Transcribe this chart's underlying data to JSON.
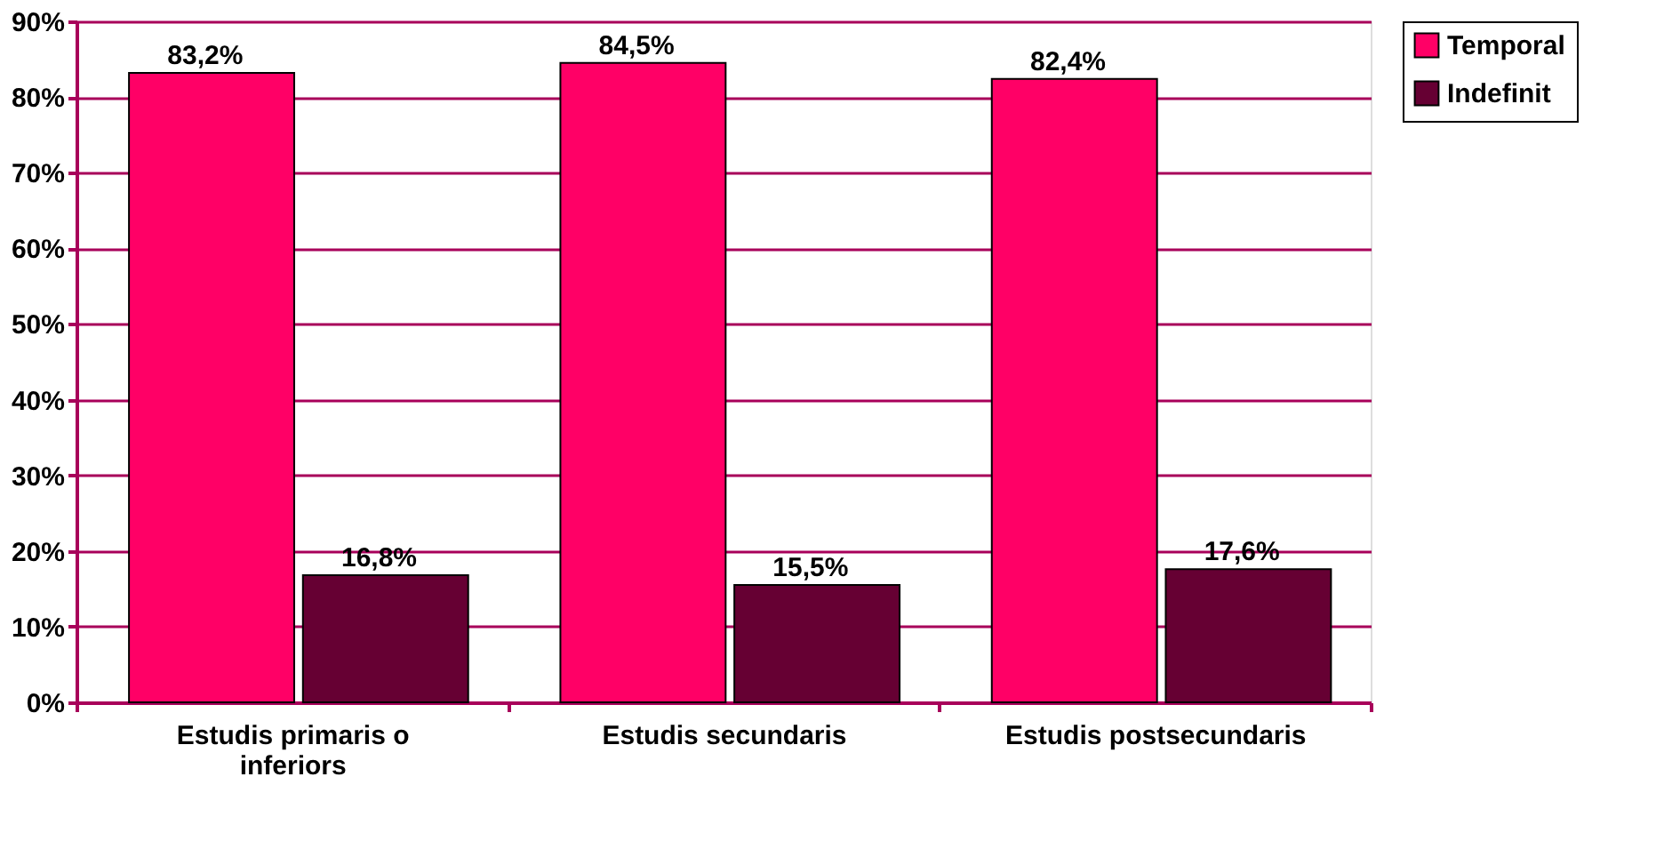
{
  "chart_data": {
    "type": "bar",
    "categories": [
      "Estudis primaris o inferiors",
      "Estudis secundaris",
      "Estudis postsecundaris"
    ],
    "series": [
      {
        "name": "Temporal",
        "color": "#ff0066",
        "values": [
          83.2,
          84.5,
          82.4
        ],
        "value_labels": [
          "83,2%",
          "84,5%",
          "82,4%"
        ]
      },
      {
        "name": "Indefinit",
        "color": "#660033",
        "values": [
          16.8,
          15.5,
          17.6
        ],
        "value_labels": [
          "16,8%",
          "15,5%",
          "17,6%"
        ]
      }
    ],
    "ylim": [
      0,
      90
    ],
    "yticks": [
      {
        "value": 0,
        "label": "0%"
      },
      {
        "value": 10,
        "label": "10%"
      },
      {
        "value": 20,
        "label": "20%"
      },
      {
        "value": 30,
        "label": "30%"
      },
      {
        "value": 40,
        "label": "40%"
      },
      {
        "value": 50,
        "label": "50%"
      },
      {
        "value": 60,
        "label": "60%"
      },
      {
        "value": 70,
        "label": "70%"
      },
      {
        "value": 80,
        "label": "80%"
      },
      {
        "value": 90,
        "label": "90%"
      }
    ],
    "grid": "y",
    "legend": "right"
  }
}
